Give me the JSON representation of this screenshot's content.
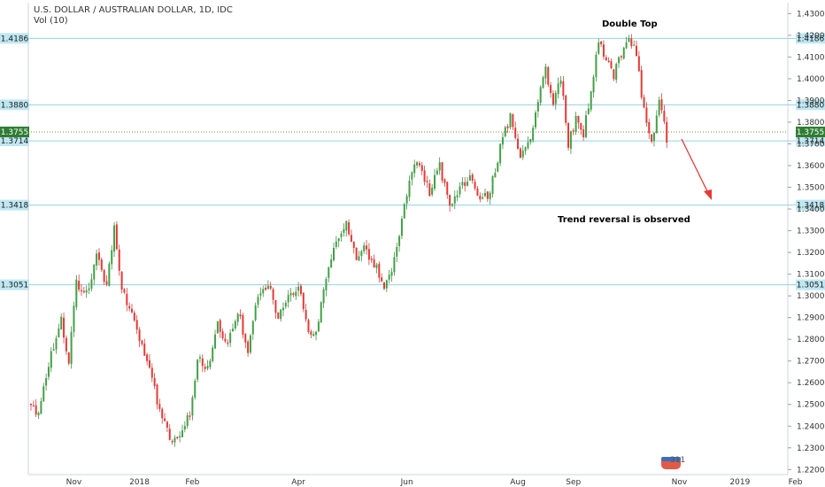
{
  "header": {
    "title": "U.S. DOLLAR / AUSTRALIAN DOLLAR, 1D, IDC",
    "vol": "Vol (10)"
  },
  "annotations": {
    "double_top": "Double Top",
    "trend": "Trend reversal is observed"
  },
  "watermark": {
    "text": "311"
  },
  "chart_data": {
    "type": "candlestick",
    "title": "U.S. DOLLAR / AUSTRALIAN DOLLAR, 1D, IDC",
    "ylim": [
      1.22,
      1.43
    ],
    "y_ticks": [
      "1.2200",
      "1.2300",
      "1.2400",
      "1.2500",
      "1.2600",
      "1.2700",
      "1.2800",
      "1.2900",
      "1.3000",
      "1.3100",
      "1.3200",
      "1.3300",
      "1.3400",
      "1.3500",
      "1.3600",
      "1.3700",
      "1.3800",
      "1.3900",
      "1.4000",
      "1.4100",
      "1.4200",
      "1.4300"
    ],
    "x_ticks": [
      {
        "label": "Nov",
        "index": 17
      },
      {
        "label": "2018",
        "index": 43
      },
      {
        "label": "Feb",
        "index": 64
      },
      {
        "label": "Apr",
        "index": 106
      },
      {
        "label": "Jun",
        "index": 149
      },
      {
        "label": "Aug",
        "index": 193
      },
      {
        "label": "Sep",
        "index": 215
      },
      {
        "label": "Nov",
        "index": 257
      },
      {
        "label": "2019",
        "index": 281
      },
      {
        "label": "Feb",
        "index": 303
      }
    ],
    "levels": [
      {
        "value": 1.4186,
        "label": "1.4186",
        "kind": "resistance"
      },
      {
        "value": 1.388,
        "label": "1.3880",
        "kind": "resistance"
      },
      {
        "value": 1.3714,
        "label": "1.3714",
        "kind": "support"
      },
      {
        "value": 1.3418,
        "label": "1.3418",
        "kind": "support"
      },
      {
        "value": 1.3051,
        "label": "1.3051",
        "kind": "support"
      }
    ],
    "last_price": {
      "value": 1.3755,
      "label": "1.3755"
    },
    "anchors": [
      [
        0,
        1.25
      ],
      [
        3,
        1.245
      ],
      [
        8,
        1.272
      ],
      [
        12,
        1.29
      ],
      [
        15,
        1.27
      ],
      [
        18,
        1.305
      ],
      [
        22,
        1.3
      ],
      [
        26,
        1.32
      ],
      [
        30,
        1.305
      ],
      [
        33,
        1.33
      ],
      [
        36,
        1.305
      ],
      [
        41,
        1.287
      ],
      [
        46,
        1.27
      ],
      [
        50,
        1.252
      ],
      [
        55,
        1.233
      ],
      [
        58,
        1.235
      ],
      [
        63,
        1.247
      ],
      [
        66,
        1.27
      ],
      [
        70,
        1.267
      ],
      [
        74,
        1.288
      ],
      [
        78,
        1.278
      ],
      [
        82,
        1.293
      ],
      [
        86,
        1.275
      ],
      [
        90,
        1.3
      ],
      [
        94,
        1.305
      ],
      [
        98,
        1.29
      ],
      [
        102,
        1.3
      ],
      [
        106,
        1.304
      ],
      [
        110,
        1.285
      ],
      [
        113,
        1.283
      ],
      [
        117,
        1.31
      ],
      [
        121,
        1.325
      ],
      [
        125,
        1.335
      ],
      [
        129,
        1.315
      ],
      [
        132,
        1.323
      ],
      [
        136,
        1.315
      ],
      [
        140,
        1.305
      ],
      [
        143,
        1.31
      ],
      [
        146,
        1.328
      ],
      [
        150,
        1.355
      ],
      [
        154,
        1.362
      ],
      [
        158,
        1.348
      ],
      [
        162,
        1.36
      ],
      [
        166,
        1.34
      ],
      [
        170,
        1.35
      ],
      [
        174,
        1.353
      ],
      [
        178,
        1.345
      ],
      [
        182,
        1.348
      ],
      [
        186,
        1.368
      ],
      [
        190,
        1.383
      ],
      [
        194,
        1.365
      ],
      [
        198,
        1.37
      ],
      [
        201,
        1.39
      ],
      [
        204,
        1.405
      ],
      [
        207,
        1.388
      ],
      [
        210,
        1.4
      ],
      [
        213,
        1.37
      ],
      [
        216,
        1.383
      ],
      [
        219,
        1.375
      ],
      [
        222,
        1.395
      ],
      [
        225,
        1.417
      ],
      [
        228,
        1.41
      ],
      [
        231,
        1.4
      ],
      [
        234,
        1.413
      ],
      [
        237,
        1.42
      ],
      [
        240,
        1.41
      ],
      [
        243,
        1.385
      ],
      [
        246,
        1.37
      ],
      [
        249,
        1.39
      ],
      [
        252,
        1.373
      ]
    ],
    "volatility": 0.0032
  }
}
